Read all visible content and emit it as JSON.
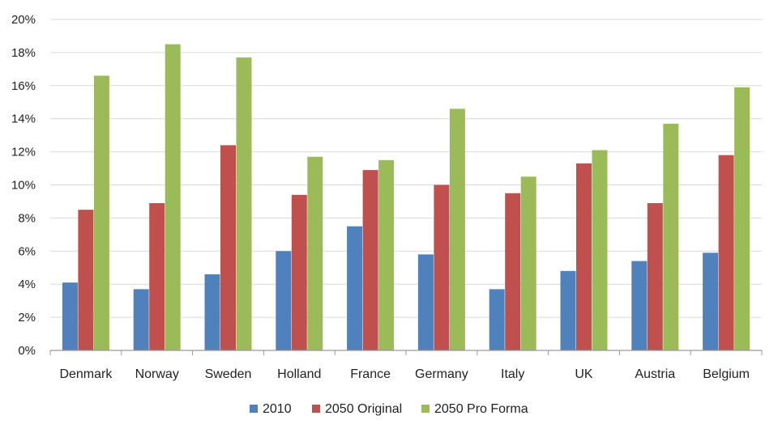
{
  "chart_data": {
    "type": "bar",
    "categories": [
      "Denmark",
      "Norway",
      "Sweden",
      "Holland",
      "France",
      "Germany",
      "Italy",
      "UK",
      "Austria",
      "Belgium"
    ],
    "series": [
      {
        "name": "2010",
        "color": "#4F81BD",
        "values": [
          4.1,
          3.7,
          4.6,
          6.0,
          7.5,
          5.8,
          3.7,
          4.8,
          5.4,
          5.9
        ]
      },
      {
        "name": "2050 Original",
        "color": "#C0504D",
        "values": [
          8.5,
          8.9,
          12.4,
          9.4,
          10.9,
          10.0,
          9.5,
          11.3,
          8.9,
          11.8
        ]
      },
      {
        "name": "2050 Pro Forma",
        "color": "#9BBB59",
        "values": [
          16.6,
          18.5,
          17.7,
          11.7,
          11.5,
          14.6,
          10.5,
          12.1,
          13.7,
          15.9
        ]
      }
    ],
    "ylim": [
      0,
      20
    ],
    "yticks": [
      "0%",
      "2%",
      "4%",
      "6%",
      "8%",
      "10%",
      "12%",
      "14%",
      "16%",
      "18%",
      "20%"
    ],
    "ytick_values": [
      0,
      2,
      4,
      6,
      8,
      10,
      12,
      14,
      16,
      18,
      20
    ],
    "grid": true,
    "legend": "bottom",
    "title": "",
    "xlabel": "",
    "ylabel": ""
  }
}
